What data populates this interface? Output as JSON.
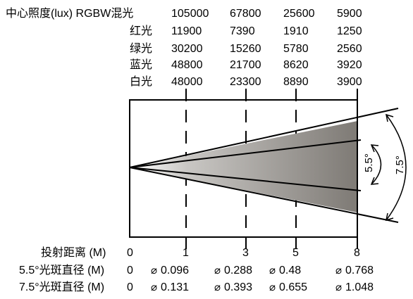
{
  "illuminance": {
    "header_label": "中心照度(lux) RGBW混光",
    "rows": [
      {
        "label": "",
        "values": [
          "105000",
          "67800",
          "25600",
          "5900"
        ]
      },
      {
        "label": "红光",
        "values": [
          "11900",
          "7390",
          "1910",
          "1250"
        ]
      },
      {
        "label": "绿光",
        "values": [
          "30200",
          "15260",
          "5780",
          "2560"
        ]
      },
      {
        "label": "蓝光",
        "values": [
          "48800",
          "21700",
          "8620",
          "3920"
        ]
      },
      {
        "label": "白光",
        "values": [
          "48000",
          "23300",
          "8890",
          "3900"
        ]
      }
    ]
  },
  "beam": {
    "angles": [
      "5.5°",
      "7.5°"
    ]
  },
  "distance": {
    "label": "投射距离 (M)",
    "values": [
      "0",
      "1",
      "3",
      "5",
      "8"
    ]
  },
  "spot_5_5": {
    "label": "5.5°光斑直径 (M)",
    "zero": "0",
    "values": [
      "0.096",
      "0.288",
      "0.48",
      "0.768"
    ]
  },
  "spot_7_5": {
    "label": "7.5°光斑直径 (M)",
    "zero": "0",
    "values": [
      "0.131",
      "0.393",
      "0.655",
      "1.048"
    ]
  },
  "diameter_symbol": "⌀"
}
